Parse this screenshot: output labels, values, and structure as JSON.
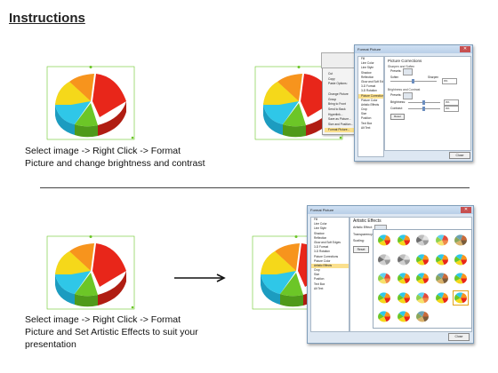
{
  "title": "Instructions",
  "captions": {
    "top": [
      "Select image -> Right Click -> Format",
      "Picture and change brightness and contrast"
    ],
    "bottom": [
      "Select image -> Right Click -> Format",
      "Picture and Set Artistic Effects to suit your",
      "presentation"
    ]
  },
  "colors": {
    "orange": "#f7941d",
    "red": "#e8261a",
    "green": "#6cc627",
    "cyan": "#2fc7e8",
    "blue": "#2d7fd6",
    "yellow": "#f5d81a"
  },
  "context_menu": {
    "items": [
      "Cut",
      "Copy",
      "Paste Options:",
      "",
      "Change Picture",
      "Group",
      "Bring to Front",
      "Send to Back",
      "Hyperlink...",
      "Save as Picture...",
      "Size and Position...",
      "Format Picture..."
    ],
    "selected_index": 11
  },
  "dialog1": {
    "title": "Format Picture",
    "nav": [
      "Fill",
      "Line Color",
      "Line Style",
      "Shadow",
      "Reflection",
      "Glow and Soft Edges",
      "3-D Format",
      "3-D Rotation",
      "Picture Corrections",
      "Picture Color",
      "Artistic Effects",
      "Crop",
      "Size",
      "Position",
      "Text Box",
      "Alt Text"
    ],
    "selected_index": 8,
    "heading": "Picture Corrections",
    "sub1": "Sharpen and Soften",
    "presets": "Presets:",
    "soften": "Soften",
    "sharpen": "Sharpen",
    "sharpen_value": "0%",
    "sub2": "Brightness and Contrast",
    "brightness": "Brightness:",
    "brightness_value": "0%",
    "contrast": "Contrast:",
    "contrast_value": "0%",
    "reset": "Reset",
    "close": "Close"
  },
  "dialog2": {
    "title": "Format Picture",
    "nav": [
      "Fill",
      "Line Color",
      "Line Style",
      "Shadow",
      "Reflection",
      "Glow and Soft Edges",
      "3-D Format",
      "3-D Rotation",
      "Picture Corrections",
      "Picture Color",
      "Artistic Effects",
      "Crop",
      "Size",
      "Position",
      "Text Box",
      "Alt Text"
    ],
    "selected_index": 10,
    "heading": "Artistic Effects",
    "effect_label": "Artistic Effect:",
    "transparency": "Transparency:",
    "scaling": "Scaling:",
    "reset": "Reset",
    "close": "Close"
  }
}
